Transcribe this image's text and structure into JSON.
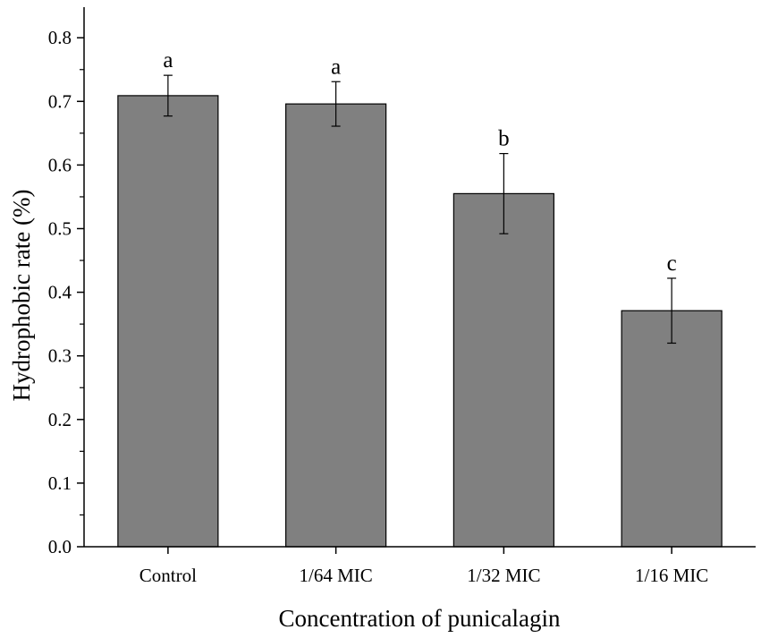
{
  "chart_data": {
    "type": "bar",
    "title": "",
    "xlabel": "Concentration of punicalagin",
    "ylabel": "Hydrophobic rate (%)",
    "categories": [
      "Control",
      "1/64 MIC",
      "1/32 MIC",
      "1/16 MIC"
    ],
    "values": [
      0.709,
      0.696,
      0.555,
      0.371
    ],
    "errors": [
      0.032,
      0.035,
      0.063,
      0.051
    ],
    "significance": [
      "a",
      "a",
      "b",
      "c"
    ],
    "ylim": [
      0.0,
      0.85
    ],
    "yticks": [
      "0.0",
      "0.1",
      "0.2",
      "0.3",
      "0.4",
      "0.5",
      "0.6",
      "0.7",
      "0.8"
    ],
    "bar_color": "#808080",
    "legend": "none",
    "grid": false
  }
}
